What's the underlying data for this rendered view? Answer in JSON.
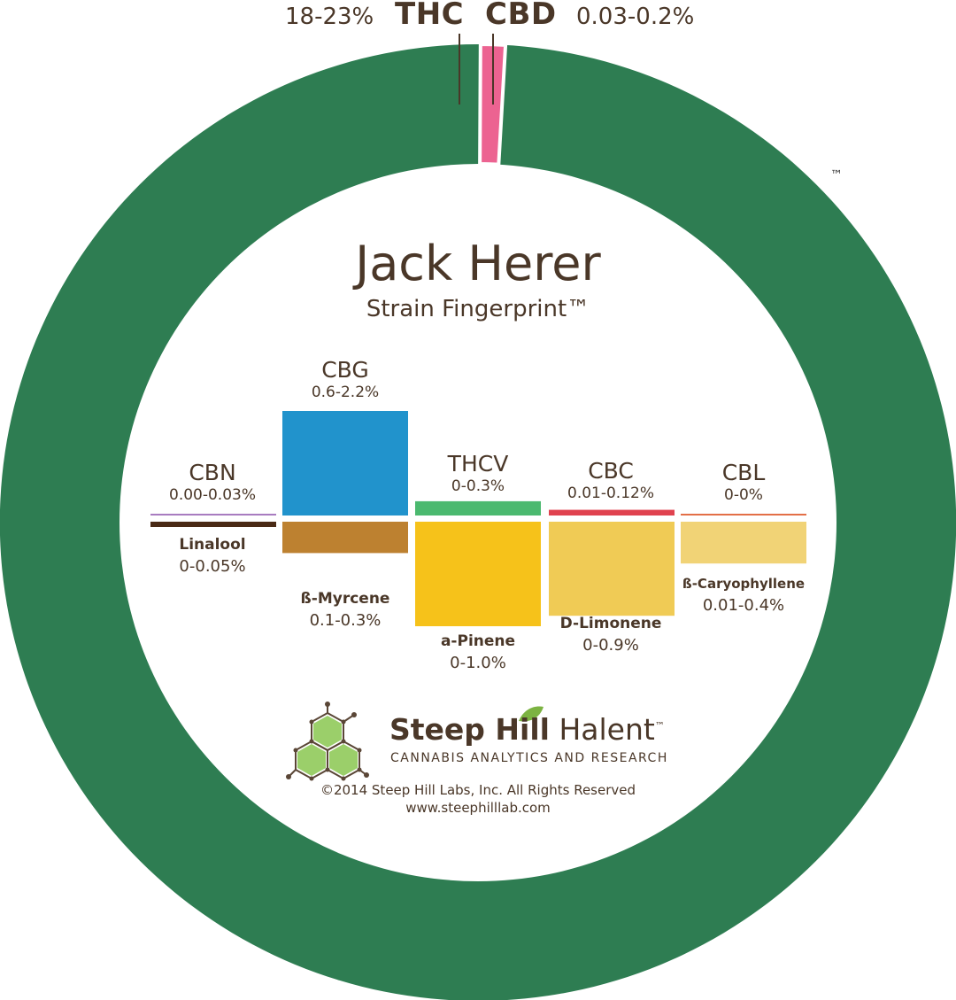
{
  "chart_data": [
    {
      "type": "pie",
      "variant": "donut",
      "slices": [
        {
          "label": "THC",
          "range": "18-23%",
          "color": "#2e7d52"
        },
        {
          "label": "CBD",
          "range": "0.03-0.2%",
          "color": "#ec6391"
        }
      ],
      "trademark": "™"
    },
    {
      "type": "bar",
      "title": "Jack Herer",
      "subtitle": "Strain Fingerprint™",
      "categories": [
        "CBN / Linalool",
        "CBG / ß-Myrcene",
        "THCV / a-Pinene",
        "CBC / D-Limonene",
        "CBL / ß-Caryophyllene"
      ],
      "series": [
        {
          "group": "cannabinoids",
          "items": [
            {
              "name": "CBN",
              "range": "0.00-0.03%",
              "low": 0.0,
              "high": 0.03,
              "color": "#a87cc0"
            },
            {
              "name": "CBG",
              "range": "0.6-2.2%",
              "low": 0.6,
              "high": 2.2,
              "color": "#2193cc"
            },
            {
              "name": "THCV",
              "range": "0-0.3%",
              "low": 0,
              "high": 0.3,
              "color": "#4bb96f"
            },
            {
              "name": "CBC",
              "range": "0.01-0.12%",
              "low": 0.01,
              "high": 0.12,
              "color": "#e0424f"
            },
            {
              "name": "CBL",
              "range": "0-0%",
              "low": 0,
              "high": 0,
              "color": "#e36f47"
            }
          ]
        },
        {
          "group": "terpenes",
          "items": [
            {
              "name": "Linalool",
              "range": "0-0.05%",
              "low": 0,
              "high": 0.05,
              "color": "#4a2a15"
            },
            {
              "name": "ß-Myrcene",
              "range": "0.1-0.3%",
              "low": 0.1,
              "high": 0.3,
              "color": "#bd8130"
            },
            {
              "name": "a-Pinene",
              "range": "0-1.0%",
              "low": 0,
              "high": 1.0,
              "color": "#f6c21a"
            },
            {
              "name": "D-Limonene",
              "range": "0-0.9%",
              "low": 0,
              "high": 0.9,
              "color": "#f0cb55"
            },
            {
              "name": "ß-Caryophyllene",
              "range": "0.01-0.4%",
              "low": 0.01,
              "high": 0.4,
              "color": "#f1d376"
            }
          ]
        }
      ]
    }
  ],
  "logo": {
    "brand_bold": "Steep Hill",
    "brand_light": "Halent",
    "brand_tm": "™",
    "tagline": "CANNABIS ANALYTICS AND RESEARCH"
  },
  "footer": {
    "copyright": "©2014 Steep Hill Labs, Inc. All Rights Reserved",
    "url": "www.steephilllab.com"
  }
}
